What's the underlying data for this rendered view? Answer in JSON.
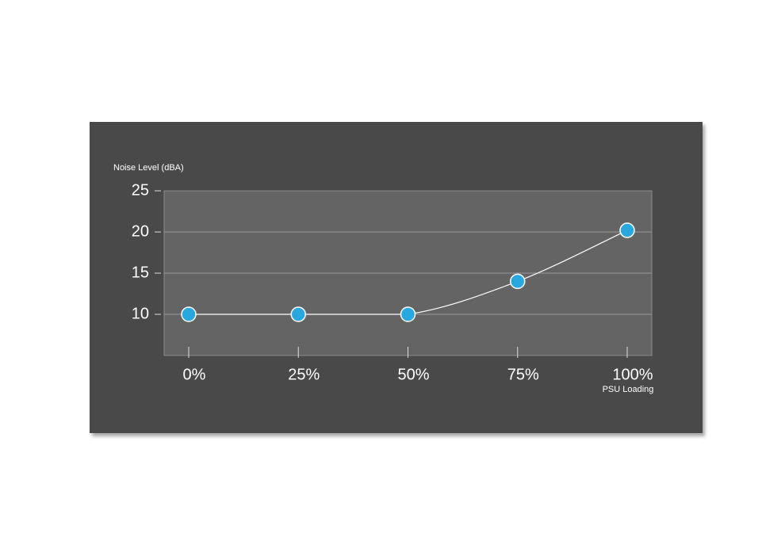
{
  "chart_data": {
    "type": "line",
    "y_label": "Noise Level (dBA)",
    "x_label": "PSU Loading",
    "categories": [
      "0%",
      "25%",
      "50%",
      "75%",
      "100%"
    ],
    "values": [
      10,
      10,
      10,
      14,
      20.2
    ],
    "color": "#29a8e0",
    "line_color": "#ffffff",
    "ylim": [
      5,
      25
    ],
    "yticks": [
      10,
      15,
      20,
      25
    ],
    "grid": true
  }
}
